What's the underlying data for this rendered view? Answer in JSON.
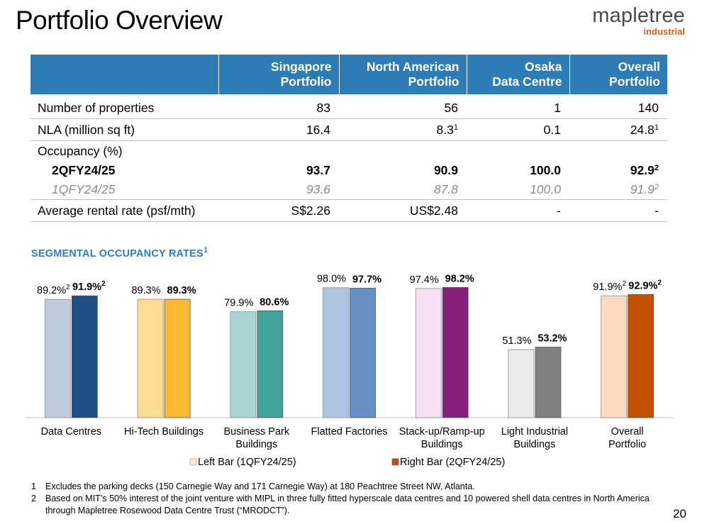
{
  "title": "Portfolio Overview",
  "logo": {
    "main": "mapletree",
    "sub": "industrial"
  },
  "table": {
    "headers": [
      "",
      "Singapore\nPortfolio",
      "North American\nPortfolio",
      "Osaka\nData Centre",
      "Overall\nPortfolio"
    ],
    "properties": {
      "label": "Number of properties",
      "values": [
        "83",
        "56",
        "1",
        "140"
      ]
    },
    "nla": {
      "label": "NLA (million sq ft)",
      "values": [
        "16.4",
        "8.3",
        "0.1",
        "24.8"
      ],
      "sups": [
        "",
        "1",
        "",
        "1"
      ]
    },
    "occupancy_label": "Occupancy (%)",
    "q2": {
      "label": "2QFY24/25",
      "values": [
        "93.7",
        "90.9",
        "100.0",
        "92.9"
      ],
      "sups": [
        "",
        "",
        "",
        "2"
      ]
    },
    "q1": {
      "label": "1QFY24/25",
      "values": [
        "93.6",
        "87.8",
        "100.0",
        "91.9"
      ],
      "sups": [
        "",
        "",
        "",
        "2"
      ]
    },
    "rental": {
      "label": "Average rental rate (psf/mth)",
      "values": [
        "S$2.26",
        "US$2.48",
        "-",
        "-"
      ]
    }
  },
  "segment_title": "SEGMENTAL OCCUPANCY RATES",
  "segment_title_sup": "1",
  "chart_data": {
    "type": "bar",
    "categories": [
      [
        "Data Centres"
      ],
      [
        "Hi-Tech Buildings"
      ],
      [
        "Business Park",
        "Buildings"
      ],
      [
        "Flatted Factories"
      ],
      [
        "Stack-up/Ramp-up",
        "Buildings"
      ],
      [
        "Light Industrial",
        "Buildings"
      ],
      [
        "Overall",
        "Portfolio"
      ]
    ],
    "series": [
      {
        "name": "Left Bar (1QFY24/25)",
        "values": [
          89.2,
          89.3,
          79.9,
          98.0,
          97.4,
          51.3,
          91.9
        ]
      },
      {
        "name": "Right Bar (2QFY24/25)",
        "values": [
          91.9,
          89.3,
          80.6,
          97.7,
          98.2,
          53.2,
          92.9
        ]
      }
    ],
    "labels_left": [
      "89.2%",
      "89.3%",
      "79.9%",
      "98.0%",
      "97.4%",
      "51.3%",
      "91.9%"
    ],
    "labels_right": [
      "91.9%",
      "89.3%",
      "80.6%",
      "97.7%",
      "98.2%",
      "53.2%",
      "92.9%"
    ],
    "sups_left": [
      "2",
      "",
      "",
      "",
      "",
      "",
      "2"
    ],
    "sups_right": [
      "2",
      "",
      "",
      "",
      "",
      "",
      "2"
    ],
    "colors_left": [
      "#bfcbdb",
      "#fddb91",
      "#a8d5d2",
      "#aec5e2",
      "#f7e0f3",
      "#ebebeb",
      "#fdd9c2"
    ],
    "colors_right": [
      "#1f4e85",
      "#fbb833",
      "#42a198",
      "#6990c6",
      "#84207a",
      "#808080",
      "#c45100"
    ],
    "legend_swatch_left": "#fde7d6",
    "legend_swatch_right": "#c45100",
    "ylim": [
      0,
      100
    ],
    "grid": false,
    "legend_position": "bottom"
  },
  "footnotes": [
    {
      "num": "1",
      "text": "Excludes the parking decks (150 Carnegie Way and 171 Carnegie Way) at 180 Peachtree Street NW, Atlanta."
    },
    {
      "num": "2",
      "text": "Based on MIT’s 50% interest of the joint venture with MIPL in three fully fitted hyperscale data centres and 10 powered shell data centres in North America through Mapletree Rosewood Data Centre Trust (“MRODCT”)."
    }
  ],
  "page_number": "20"
}
